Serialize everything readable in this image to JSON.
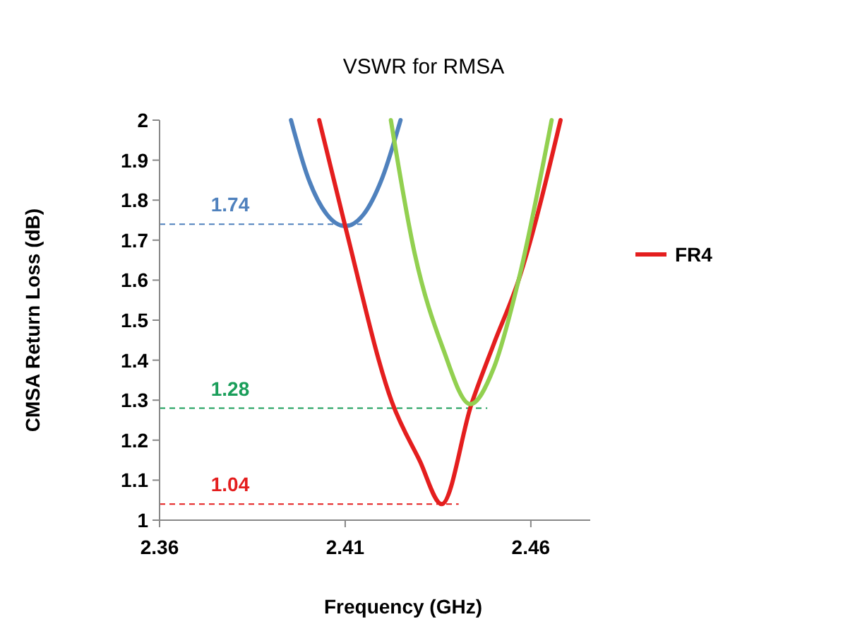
{
  "chart_data": {
    "type": "line",
    "title": "VSWR for RMSA",
    "xlabel": "Frequency (GHz)",
    "ylabel": "CMSA Return Loss (dB)",
    "xlim": [
      2.36,
      2.476
    ],
    "xticks": [
      2.36,
      2.41,
      2.46
    ],
    "ylim": [
      1,
      2
    ],
    "yticks": [
      1,
      1.1,
      1.2,
      1.3,
      1.4,
      1.5,
      1.6,
      1.7,
      1.8,
      1.9,
      2
    ],
    "legend": "right",
    "line_style": "solid",
    "grid": false,
    "series": [
      {
        "color": "#4f81bd",
        "x": [
          2.3954,
          2.4,
          2.405,
          2.41,
          2.415,
          2.42,
          2.4249
        ],
        "values": [
          2,
          1.856,
          1.765,
          1.735,
          1.765,
          1.856,
          2
        ]
      },
      {
        "name": "FR4",
        "color": "#e41e1e",
        "x": [
          2.403,
          2.41,
          2.4226,
          2.43,
          2.436,
          2.444,
          2.45,
          2.4567,
          2.468
        ],
        "values": [
          2,
          1.735,
          1.295,
          1.15,
          1.04,
          1.29,
          1.44,
          1.6,
          2
        ]
      },
      {
        "color": "#92d050",
        "x": [
          2.4223,
          2.4287,
          2.4363,
          2.4437,
          2.45,
          2.4567,
          2.4656
        ],
        "values": [
          2,
          1.667,
          1.43,
          1.29,
          1.38,
          1.6,
          2
        ]
      }
    ],
    "ref_lines": [
      {
        "axis": "y",
        "value": 1.74,
        "label": "1.74",
        "color": "#4f81bd"
      },
      {
        "axis": "y",
        "value": 1.04,
        "label": "1.04",
        "color": "#e41e1e"
      },
      {
        "axis": "y",
        "value": 1.28,
        "label": "1.28",
        "color": "#1a9e5a"
      }
    ]
  }
}
